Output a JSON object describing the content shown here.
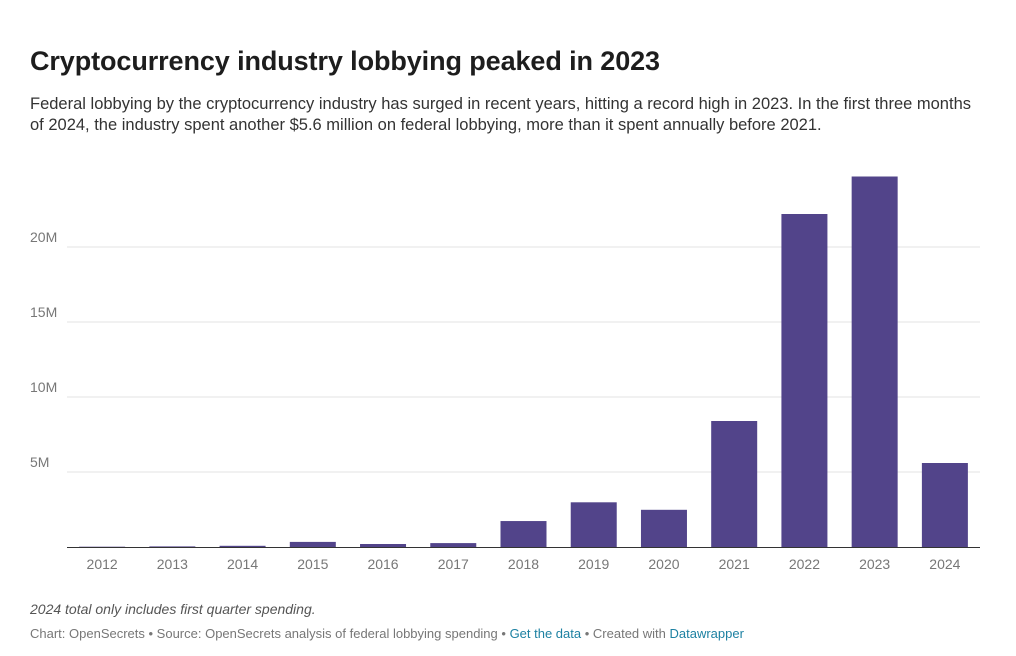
{
  "header": {
    "title": "Cryptocurrency industry lobbying peaked in 2023",
    "description": "Federal lobbying by the cryptocurrency industry has surged in recent years, hitting a record high in 2023. In the first three months of 2024, the industry spent another $5.6 million on federal lobbying, more than it spent annually before 2021."
  },
  "footer": {
    "notes": "2024 total only includes first quarter spending.",
    "chart_credit": "Chart: OpenSecrets",
    "sep1": " • ",
    "source": "Source: OpenSecrets analysis of federal lobbying spending",
    "sep2": " • ",
    "get_data_label": "Get the data",
    "sep3": " • ",
    "created_with": "Created with ",
    "datawrapper_label": "Datawrapper"
  },
  "colors": {
    "bar": "#52448a",
    "grid": "#e3e3e3",
    "baseline": "#333333",
    "link": "#1d81a2"
  },
  "chart_data": {
    "type": "bar",
    "title": "Cryptocurrency industry lobbying peaked in 2023",
    "xlabel": "",
    "ylabel": "",
    "categories": [
      "2012",
      "2013",
      "2014",
      "2015",
      "2016",
      "2017",
      "2018",
      "2019",
      "2020",
      "2021",
      "2022",
      "2023",
      "2024"
    ],
    "values": [
      0.02,
      0.04,
      0.08,
      0.34,
      0.2,
      0.26,
      1.73,
      2.98,
      2.48,
      8.4,
      22.2,
      24.7,
      5.6
    ],
    "unit": "M",
    "ylim": [
      0,
      25
    ],
    "yticks": [
      5,
      10,
      15,
      20
    ],
    "ytick_labels": [
      "5M",
      "10M",
      "15M",
      "20M"
    ],
    "grid": true,
    "legend": false
  }
}
